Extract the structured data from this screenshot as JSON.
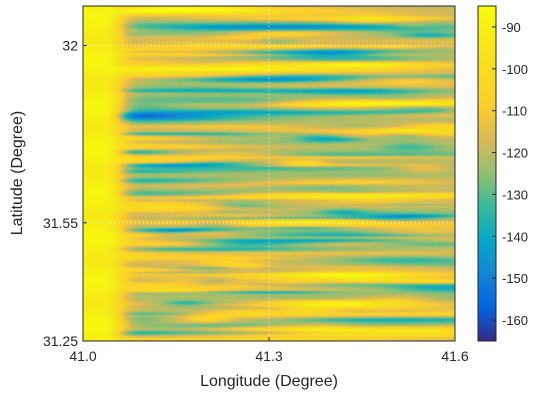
{
  "chart_data": {
    "type": "heatmap",
    "xlabel": "Longitude (Degree)",
    "ylabel": "Latitude (Degree)",
    "xlim": [
      41.0,
      41.6
    ],
    "ylim": [
      31.25,
      32.1
    ],
    "x_ticks": [
      {
        "value": 41.0,
        "label": "41.0"
      },
      {
        "value": 41.3,
        "label": "41.3"
      },
      {
        "value": 41.6,
        "label": "41.6"
      }
    ],
    "y_ticks": [
      {
        "value": 31.25,
        "label": "31.25"
      },
      {
        "value": 31.55,
        "label": "31.55"
      },
      {
        "value": 32.0,
        "label": "32"
      }
    ],
    "grid": true,
    "colormap": "parula",
    "colorbar": {
      "range": [
        -165,
        -85
      ],
      "ticks": [
        {
          "value": -90,
          "label": "-90"
        },
        {
          "value": -100,
          "label": "-100"
        },
        {
          "value": -110,
          "label": "-110"
        },
        {
          "value": -120,
          "label": "-120"
        },
        {
          "value": -130,
          "label": "-130"
        },
        {
          "value": -140,
          "label": "-140"
        },
        {
          "value": -150,
          "label": "-150"
        },
        {
          "value": -160,
          "label": "-160"
        }
      ]
    },
    "field_description": {
      "west_edge_value": -90,
      "background_value": -120,
      "streak_orientation": "horizontal"
    }
  }
}
